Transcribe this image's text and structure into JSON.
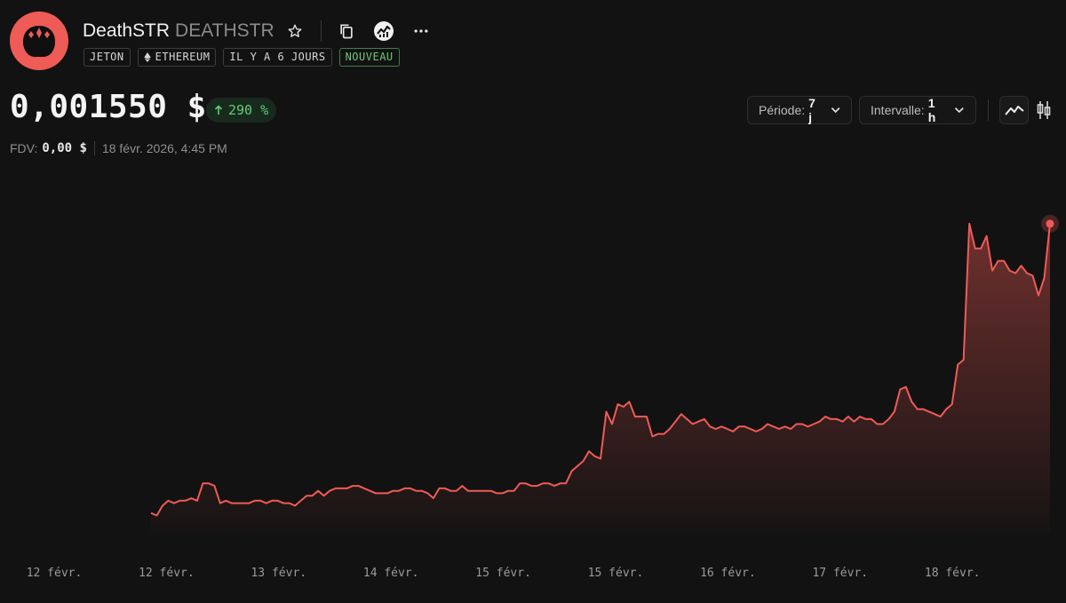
{
  "token": {
    "name": "DeathSTR",
    "symbol": "DEATHSTR",
    "badges": {
      "type": "JETON",
      "chain": "ETHEREUM",
      "age": "IL Y A 6 JOURS",
      "status": "NOUVEAU"
    }
  },
  "price": {
    "value": "0,001550 $",
    "change": "290 %",
    "change_direction": "up"
  },
  "stats": {
    "fdv_label": "FDV:",
    "fdv_value": "0,00 $",
    "timestamp": "18 févr. 2026, 4:45 PM"
  },
  "controls": {
    "period_label": "Période:",
    "period_value": "7 j",
    "interval_label": "Intervalle:",
    "interval_value": "1 h"
  },
  "icons": {
    "star": "star-icon",
    "copy": "copy-icon",
    "analytics": "analytics-icon",
    "more": "more-icon",
    "line_chart": "line-chart-icon",
    "candles": "candlestick-icon"
  },
  "colors": {
    "accent": "#ef5b56",
    "positive": "#5fcf73",
    "background": "#121212"
  },
  "chart_data": {
    "type": "area",
    "x_tick_labels": [
      "12 févr.",
      "12 févr.",
      "13 févr.",
      "14 févr.",
      "15 févr.",
      "15 févr.",
      "16 févr.",
      "17 févr.",
      "18 févr."
    ],
    "series": [
      {
        "values": [
          0.00038,
          0.00037,
          0.00041,
          0.00043,
          0.00042,
          0.00043,
          0.00043,
          0.00044,
          0.00043,
          0.0005,
          0.0005,
          0.00049,
          0.00042,
          0.00043,
          0.00042,
          0.00042,
          0.00042,
          0.00042,
          0.00043,
          0.00043,
          0.00042,
          0.00043,
          0.00043,
          0.00042,
          0.00042,
          0.00041,
          0.00043,
          0.00045,
          0.00045,
          0.00047,
          0.00045,
          0.00047,
          0.00048,
          0.00048,
          0.00048,
          0.00049,
          0.00049,
          0.00048,
          0.00047,
          0.00046,
          0.00046,
          0.00046,
          0.00047,
          0.00047,
          0.00048,
          0.00048,
          0.00047,
          0.00047,
          0.00046,
          0.00044,
          0.00048,
          0.00048,
          0.00047,
          0.00047,
          0.00049,
          0.00047,
          0.00047,
          0.00047,
          0.00047,
          0.00047,
          0.00046,
          0.00046,
          0.00047,
          0.00047,
          0.0005,
          0.0005,
          0.00049,
          0.00049,
          0.0005,
          0.0005,
          0.00049,
          0.0005,
          0.0005,
          0.00055,
          0.00057,
          0.00059,
          0.00063,
          0.00061,
          0.0006,
          0.00079,
          0.00074,
          0.00082,
          0.00081,
          0.00083,
          0.00077,
          0.00077,
          0.00077,
          0.00069,
          0.0007,
          0.0007,
          0.00072,
          0.00075,
          0.00078,
          0.00076,
          0.00074,
          0.00075,
          0.00076,
          0.00073,
          0.00072,
          0.00073,
          0.00072,
          0.00071,
          0.00073,
          0.00073,
          0.00072,
          0.00071,
          0.00072,
          0.00074,
          0.00073,
          0.00072,
          0.00073,
          0.00072,
          0.00074,
          0.00074,
          0.00073,
          0.00074,
          0.00075,
          0.00077,
          0.00076,
          0.00076,
          0.00075,
          0.00077,
          0.00075,
          0.00077,
          0.00076,
          0.00076,
          0.00074,
          0.00074,
          0.00076,
          0.00079,
          0.00088,
          0.00089,
          0.00083,
          0.0008,
          0.0008,
          0.00079,
          0.00078,
          0.00077,
          0.0008,
          0.00082,
          0.00098,
          0.001,
          0.00155,
          0.00145,
          0.00145,
          0.0015,
          0.00136,
          0.0014,
          0.0014,
          0.00136,
          0.00135,
          0.00138,
          0.00135,
          0.00134,
          0.00126,
          0.00133,
          0.00155
        ]
      }
    ],
    "ylim": [
      0.0003,
      0.0016
    ],
    "grid": false,
    "legend": "none"
  }
}
